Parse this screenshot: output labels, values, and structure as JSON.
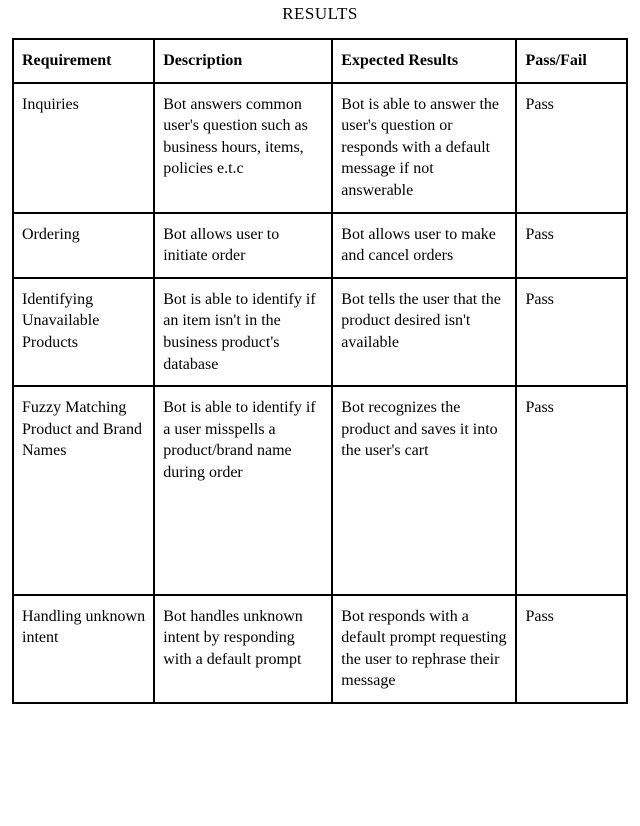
{
  "caption": "RESULTS",
  "table": {
    "type": "table",
    "border_color": "#000000",
    "border_width": 2,
    "background_color": "#ffffff",
    "header_font_weight": "bold",
    "font_family": "Times New Roman",
    "font_size_pt": 12,
    "columns": [
      {
        "key": "requirement",
        "label": "Requirement",
        "width_pct": 23,
        "align": "left"
      },
      {
        "key": "description",
        "label": "Description",
        "width_pct": 29,
        "align": "left"
      },
      {
        "key": "expected",
        "label": "Expected Results",
        "width_pct": 30,
        "align": "left"
      },
      {
        "key": "passfail",
        "label": "Pass/Fail",
        "width_pct": 18,
        "align": "left"
      }
    ],
    "rows": [
      {
        "requirement": "Inquiries",
        "description": "Bot answers common user's question such as business hours, items, policies e.t.c",
        "expected": "Bot is able to answer the user's question or responds with a default message if not answerable",
        "passfail": " Pass"
      },
      {
        "requirement": "Ordering",
        "description": " Bot allows user to initiate order",
        "expected": "Bot allows user to make and cancel orders",
        "passfail": "Pass"
      },
      {
        "requirement": "Identifying Unavailable Products",
        "description": "Bot is able to identify if an item isn't in the business product's database",
        "expected": "Bot tells the user that the product desired isn't available",
        "passfail": "Pass"
      },
      {
        "requirement": "Fuzzy Matching Product and Brand Names",
        "description": "Bot is able to identify if a user misspells a product/brand name during order",
        "expected": "Bot recognizes the product and saves it into the user's cart",
        "passfail": "Pass",
        "extra_space": true
      },
      {
        "requirement": "Handling unknown intent",
        "description": "Bot handles unknown intent by responding with a default prompt",
        "expected": "Bot responds with a default prompt requesting the user to rephrase their message",
        "passfail": "Pass"
      }
    ]
  }
}
